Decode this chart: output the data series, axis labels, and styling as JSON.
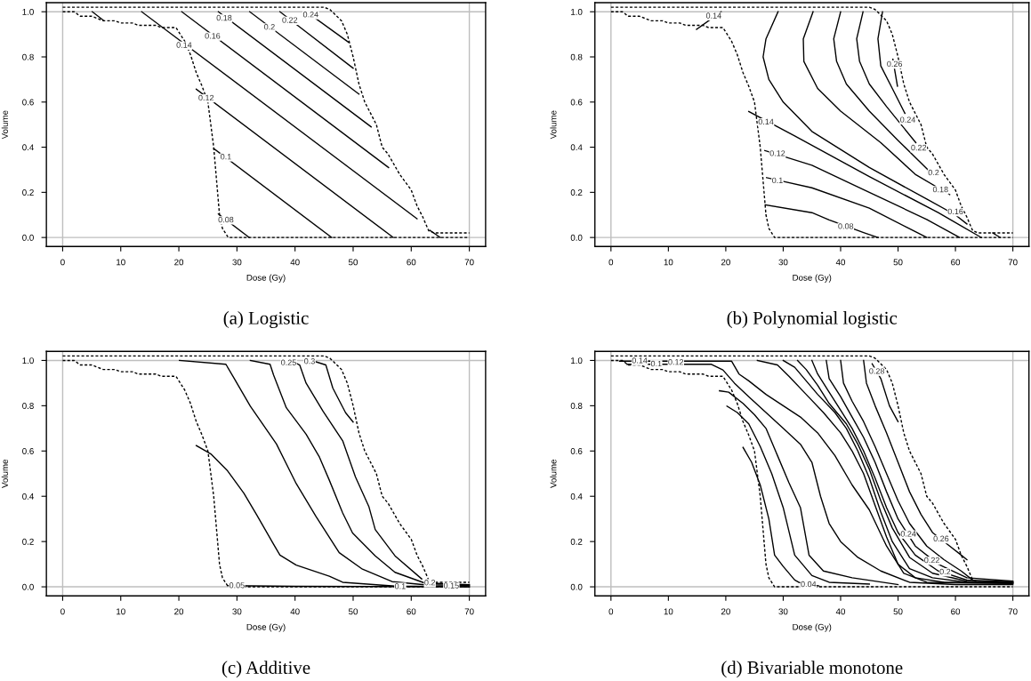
{
  "chart_data": [
    {
      "type": "line",
      "title": "(a) Logistic",
      "xlabel": "Dose (Gy)",
      "ylabel": "Volume",
      "xlim": [
        -2.8,
        72.8
      ],
      "ylim": [
        -0.04,
        1.04
      ],
      "xticks": [
        0,
        10,
        20,
        30,
        40,
        50,
        60,
        70
      ],
      "yticks": [
        {
          "value": 0,
          "label": "0.0"
        },
        {
          "value": 0.2,
          "label": "0.2"
        },
        {
          "value": 0.4,
          "label": "0.4"
        },
        {
          "value": 0.6,
          "label": "0.6"
        },
        {
          "value": 0.8,
          "label": "0.8"
        },
        {
          "value": 1,
          "label": "1.0"
        }
      ],
      "grid": false,
      "ref_lines": [
        {
          "axis": "x",
          "value": 0,
          "color": "#bebebe"
        },
        {
          "axis": "x",
          "value": 70,
          "color": "#bebebe"
        },
        {
          "axis": "y",
          "value": 0,
          "color": "#bebebe"
        },
        {
          "axis": "y",
          "value": 1,
          "color": "#bebebe"
        }
      ],
      "series": [
        {
          "color": "#000000",
          "line_style": "dashed",
          "x": [
            0,
            2,
            3,
            5,
            7,
            9,
            10,
            12,
            13,
            16,
            17,
            19.5,
            21,
            22,
            23,
            24,
            25,
            25.5,
            26,
            26.5,
            27,
            27.5,
            28.5,
            70
          ],
          "values": [
            1.0,
            1.0,
            0.98,
            0.98,
            0.96,
            0.96,
            0.95,
            0.95,
            0.94,
            0.94,
            0.93,
            0.93,
            0.87,
            0.81,
            0.73,
            0.67,
            0.6,
            0.5,
            0.4,
            0.25,
            0.1,
            0.04,
            0.0,
            0.0
          ]
        },
        {
          "color": "#000000",
          "line_style": "dashed",
          "x": [
            0,
            45,
            46,
            48,
            49,
            50,
            51,
            52,
            54,
            55,
            56,
            58,
            60,
            61,
            62,
            63,
            64,
            70
          ],
          "values": [
            1.02,
            1.02,
            1.01,
            0.96,
            0.9,
            0.8,
            0.68,
            0.6,
            0.5,
            0.4,
            0.37,
            0.28,
            0.21,
            0.14,
            0.09,
            0.03,
            0.02,
            0.02
          ]
        },
        {
          "color": "#000000",
          "line_style": "solid",
          "x": [
            26.8,
            32.1
          ],
          "values": [
            0.104,
            0.0
          ]
        },
        {
          "color": "#000000",
          "line_style": "solid",
          "x": [
            26.0,
            46.3
          ],
          "values": [
            0.394,
            0.0
          ]
        },
        {
          "color": "#000000",
          "line_style": "solid",
          "x": [
            23.0,
            56.9
          ],
          "values": [
            0.657,
            0.0
          ]
        },
        {
          "color": "#000000",
          "line_style": "solid",
          "x": [
            13.6,
            61.0
          ],
          "values": [
            1.0,
            0.083
          ]
        },
        {
          "color": "#000000",
          "line_style": "solid",
          "x": [
            20.5,
            56.1
          ],
          "values": [
            1.0,
            0.31
          ]
        },
        {
          "color": "#000000",
          "line_style": "solid",
          "x": [
            26.8,
            53.1
          ],
          "values": [
            1.0,
            0.49
          ]
        },
        {
          "color": "#000000",
          "line_style": "solid",
          "x": [
            32.2,
            51.0
          ],
          "values": [
            1.0,
            0.635
          ]
        },
        {
          "color": "#000000",
          "line_style": "solid",
          "x": [
            37.4,
            50.0
          ],
          "values": [
            1.0,
            0.75
          ]
        },
        {
          "color": "#000000",
          "line_style": "solid",
          "x": [
            42.5,
            49.2
          ],
          "values": [
            0.99,
            0.865
          ]
        },
        {
          "color": "#000000",
          "line_style": "solid",
          "x": [
            5.1,
            7.1
          ],
          "values": [
            1.0,
            0.96
          ]
        },
        {
          "color": "#000000",
          "line_style": "solid",
          "x": [
            63.2,
            65.0
          ],
          "values": [
            0.032,
            0.0
          ]
        }
      ],
      "annotations": [
        {
          "text": "0.08",
          "x": 28.1,
          "y": 0.076
        },
        {
          "text": "0.1",
          "x": 28.1,
          "y": 0.355
        },
        {
          "text": "0.12",
          "x": 24.7,
          "y": 0.616
        },
        {
          "text": "0.14",
          "x": 20.9,
          "y": 0.85
        },
        {
          "text": "0.16",
          "x": 25.8,
          "y": 0.89
        },
        {
          "text": "0.18",
          "x": 27.8,
          "y": 0.97
        },
        {
          "text": "0.2",
          "x": 35.6,
          "y": 0.93
        },
        {
          "text": "0.22",
          "x": 39.1,
          "y": 0.96
        },
        {
          "text": "0.24",
          "x": 42.7,
          "y": 0.985
        }
      ]
    },
    {
      "type": "line",
      "title": "(b) Polynomial logistic",
      "xlabel": "Dose (Gy)",
      "ylabel": "Volume",
      "xlim": [
        -2.8,
        72.8
      ],
      "ylim": [
        -0.04,
        1.04
      ],
      "xticks": [
        0,
        10,
        20,
        30,
        40,
        50,
        60,
        70
      ],
      "yticks": [
        {
          "value": 0,
          "label": "0.0"
        },
        {
          "value": 0.2,
          "label": "0.2"
        },
        {
          "value": 0.4,
          "label": "0.4"
        },
        {
          "value": 0.6,
          "label": "0.6"
        },
        {
          "value": 0.8,
          "label": "0.8"
        },
        {
          "value": 1,
          "label": "1.0"
        }
      ],
      "grid": false,
      "ref_lines": [
        {
          "axis": "x",
          "value": 0,
          "color": "#bebebe"
        },
        {
          "axis": "x",
          "value": 70,
          "color": "#bebebe"
        },
        {
          "axis": "y",
          "value": 0,
          "color": "#bebebe"
        },
        {
          "axis": "y",
          "value": 1,
          "color": "#bebebe"
        }
      ],
      "series": [
        {
          "color": "#000000",
          "line_style": "dashed",
          "x": [
            0,
            2,
            3,
            5,
            7,
            9,
            10,
            12,
            13,
            16,
            17,
            19.5,
            21,
            22,
            23,
            24,
            25,
            25.5,
            26,
            26.5,
            27,
            27.5,
            28.5,
            70
          ],
          "values": [
            1.0,
            1.0,
            0.98,
            0.98,
            0.96,
            0.96,
            0.95,
            0.95,
            0.94,
            0.94,
            0.93,
            0.93,
            0.87,
            0.81,
            0.73,
            0.67,
            0.6,
            0.5,
            0.4,
            0.25,
            0.1,
            0.04,
            0.0,
            0.0
          ]
        },
        {
          "color": "#000000",
          "line_style": "dashed",
          "x": [
            0,
            45,
            46,
            48,
            49,
            50,
            51,
            52,
            54,
            55,
            56,
            58,
            60,
            61,
            62,
            63,
            64,
            70
          ],
          "values": [
            1.02,
            1.02,
            1.01,
            0.96,
            0.9,
            0.8,
            0.68,
            0.6,
            0.5,
            0.4,
            0.37,
            0.28,
            0.21,
            0.14,
            0.09,
            0.03,
            0.02,
            0.02
          ]
        },
        {
          "color": "#000000",
          "line_style": "solid",
          "x": [
            26.9,
            35,
            38,
            44,
            46.5
          ],
          "values": [
            0.145,
            0.11,
            0.078,
            0.022,
            0.0
          ]
        },
        {
          "color": "#000000",
          "line_style": "solid",
          "x": [
            27.1,
            35,
            45,
            55
          ],
          "values": [
            0.265,
            0.22,
            0.13,
            0.0
          ]
        },
        {
          "color": "#000000",
          "line_style": "solid",
          "x": [
            26.8,
            35,
            45,
            55,
            60.7
          ],
          "values": [
            0.385,
            0.32,
            0.2,
            0.08,
            0.0
          ]
        },
        {
          "color": "#000000",
          "line_style": "solid",
          "x": [
            24.0,
            32,
            45,
            57,
            64.5
          ],
          "values": [
            0.558,
            0.45,
            0.27,
            0.11,
            0.0
          ]
        },
        {
          "color": "#000000",
          "line_style": "solid",
          "x": [
            29.1,
            27.0,
            26.5,
            27.5,
            30,
            35,
            45,
            55,
            60,
            62
          ],
          "values": [
            1.0,
            0.88,
            0.8,
            0.7,
            0.6,
            0.47,
            0.31,
            0.17,
            0.1,
            0.06
          ]
        },
        {
          "color": "#000000",
          "line_style": "solid",
          "x": [
            35.2,
            33.5,
            33.6,
            36,
            40,
            47,
            53,
            59
          ],
          "values": [
            1.0,
            0.88,
            0.78,
            0.66,
            0.56,
            0.42,
            0.28,
            0.19
          ]
        },
        {
          "color": "#000000",
          "line_style": "solid",
          "x": [
            40.0,
            38.8,
            39.3,
            41,
            45,
            50,
            56
          ],
          "values": [
            1.0,
            0.88,
            0.78,
            0.68,
            0.56,
            0.43,
            0.28
          ]
        },
        {
          "color": "#000000",
          "line_style": "solid",
          "x": [
            43.9,
            42.8,
            43.3,
            45,
            48,
            53.1
          ],
          "values": [
            1.0,
            0.88,
            0.78,
            0.68,
            0.58,
            0.42
          ]
        },
        {
          "color": "#000000",
          "line_style": "solid",
          "x": [
            47.3,
            46.5,
            47,
            49,
            51.2
          ],
          "values": [
            1.0,
            0.88,
            0.76,
            0.66,
            0.55
          ]
        },
        {
          "color": "#000000",
          "line_style": "solid",
          "x": [
            49.1,
            49.9
          ],
          "values": [
            0.79,
            0.67
          ]
        },
        {
          "color": "#000000",
          "line_style": "solid",
          "x": [
            14.9,
            19.2
          ],
          "values": [
            0.922,
            1.0
          ]
        },
        {
          "color": "#000000",
          "line_style": "solid",
          "x": [
            66.5,
            67.8
          ],
          "values": [
            0.02,
            0.0
          ]
        }
      ],
      "annotations": [
        {
          "text": "0.14",
          "x": 17.9,
          "y": 0.98
        },
        {
          "text": "0.14",
          "x": 27.0,
          "y": 0.51
        },
        {
          "text": "0.12",
          "x": 29.0,
          "y": 0.37
        },
        {
          "text": "0.1",
          "x": 29.0,
          "y": 0.25
        },
        {
          "text": "0.08",
          "x": 40.9,
          "y": 0.047
        },
        {
          "text": "0.16",
          "x": 60.0,
          "y": 0.112
        },
        {
          "text": "0.18",
          "x": 57.4,
          "y": 0.21
        },
        {
          "text": "0.2",
          "x": 56.2,
          "y": 0.285
        },
        {
          "text": "0.22",
          "x": 53.6,
          "y": 0.395
        },
        {
          "text": "0.24",
          "x": 51.7,
          "y": 0.519
        },
        {
          "text": "0.26",
          "x": 49.4,
          "y": 0.766
        }
      ]
    },
    {
      "type": "line",
      "title": "(c) Additive",
      "xlabel": "Dose (Gy)",
      "ylabel": "Volume",
      "xlim": [
        -2.8,
        72.8
      ],
      "ylim": [
        -0.04,
        1.04
      ],
      "xticks": [
        0,
        10,
        20,
        30,
        40,
        50,
        60,
        70
      ],
      "yticks": [
        {
          "value": 0,
          "label": "0.0"
        },
        {
          "value": 0.2,
          "label": "0.2"
        },
        {
          "value": 0.4,
          "label": "0.4"
        },
        {
          "value": 0.6,
          "label": "0.6"
        },
        {
          "value": 0.8,
          "label": "0.8"
        },
        {
          "value": 1,
          "label": "1.0"
        }
      ],
      "grid": false,
      "ref_lines": [
        {
          "axis": "x",
          "value": 0,
          "color": "#bebebe"
        },
        {
          "axis": "x",
          "value": 70,
          "color": "#bebebe"
        },
        {
          "axis": "y",
          "value": 0,
          "color": "#bebebe"
        },
        {
          "axis": "y",
          "value": 1,
          "color": "#bebebe"
        }
      ],
      "series": [
        {
          "color": "#000000",
          "line_style": "dashed",
          "x": [
            0,
            2,
            3,
            5,
            7,
            9,
            10,
            12,
            13,
            16,
            17,
            19.5,
            21,
            22,
            23,
            24,
            25,
            25.5,
            26,
            26.5,
            27,
            27.5,
            28.5,
            70
          ],
          "values": [
            1.0,
            1.0,
            0.98,
            0.98,
            0.96,
            0.96,
            0.95,
            0.95,
            0.94,
            0.94,
            0.93,
            0.93,
            0.87,
            0.81,
            0.73,
            0.67,
            0.6,
            0.5,
            0.4,
            0.25,
            0.1,
            0.04,
            0.0,
            0.0
          ]
        },
        {
          "color": "#000000",
          "line_style": "dashed",
          "x": [
            0,
            45,
            46,
            48,
            49,
            50,
            51,
            52,
            54,
            55,
            56,
            58,
            60,
            61,
            62,
            63,
            64,
            70
          ],
          "values": [
            1.02,
            1.02,
            1.01,
            0.96,
            0.9,
            0.8,
            0.68,
            0.6,
            0.5,
            0.4,
            0.37,
            0.28,
            0.21,
            0.14,
            0.09,
            0.03,
            0.02,
            0.02
          ]
        },
        {
          "color": "#000000",
          "line_style": "solid",
          "x": [
            28.5,
            40,
            70
          ],
          "values": [
            0.005,
            0.002,
            0.0
          ]
        },
        {
          "color": "#000000",
          "line_style": "solid",
          "x": [
            23.0,
            25.5,
            28.3,
            31.2,
            33.4,
            36.3,
            37.4,
            40.2,
            45.9,
            48.2,
            57.2,
            70
          ],
          "values": [
            0.624,
            0.587,
            0.515,
            0.413,
            0.318,
            0.188,
            0.14,
            0.096,
            0.047,
            0.02,
            0.003,
            0.0
          ]
        },
        {
          "color": "#000000",
          "line_style": "solid",
          "x": [
            20.1,
            28.1,
            29.5,
            32.3,
            36.8,
            40.2,
            43.6,
            47.6,
            51.6,
            56.7,
            62.3,
            70
          ],
          "values": [
            1.0,
            0.983,
            0.922,
            0.798,
            0.631,
            0.456,
            0.311,
            0.151,
            0.078,
            0.023,
            0.009,
            0.006
          ]
        },
        {
          "color": "#000000",
          "line_style": "solid",
          "x": [
            32.3,
            35.7,
            36.3,
            38.5,
            41.9,
            44.2,
            45.9,
            48.2,
            49.9,
            53.8,
            57.2,
            62.3,
            70
          ],
          "values": [
            1.0,
            0.983,
            0.936,
            0.791,
            0.674,
            0.573,
            0.471,
            0.326,
            0.238,
            0.137,
            0.064,
            0.017,
            0.009
          ]
        },
        {
          "color": "#000000",
          "line_style": "solid",
          "x": [
            40.2,
            40.8,
            41.9,
            44.8,
            48.2,
            50.4,
            52.7,
            53.8,
            57.2,
            61.8
          ],
          "values": [
            0.988,
            0.98,
            0.9,
            0.776,
            0.645,
            0.485,
            0.355,
            0.253,
            0.137,
            0.035
          ]
        },
        {
          "color": "#000000",
          "line_style": "solid",
          "x": [
            43.6,
            45.3,
            46.5,
            48.7,
            50.0
          ],
          "values": [
            0.994,
            0.98,
            0.878,
            0.769,
            0.728
          ]
        }
      ],
      "annotations": [
        {
          "text": "0.05",
          "x": 30.0,
          "y": 0.004
        },
        {
          "text": "0.1",
          "x": 58.1,
          "y": 0.0
        },
        {
          "text": "0.15",
          "x": 66.9,
          "y": 0.003
        },
        {
          "text": "0.2",
          "x": 63.2,
          "y": 0.016
        },
        {
          "text": "0.25",
          "x": 38.9,
          "y": 0.988
        },
        {
          "text": "0.3",
          "x": 42.5,
          "y": 0.994
        }
      ]
    },
    {
      "type": "line",
      "title": "(d) Bivariable monotone",
      "xlabel": "Dose (Gy)",
      "ylabel": "Volume",
      "xlim": [
        -2.8,
        72.8
      ],
      "ylim": [
        -0.04,
        1.04
      ],
      "xticks": [
        0,
        10,
        20,
        30,
        40,
        50,
        60,
        70
      ],
      "yticks": [
        {
          "value": 0,
          "label": "0.0"
        },
        {
          "value": 0.2,
          "label": "0.2"
        },
        {
          "value": 0.4,
          "label": "0.4"
        },
        {
          "value": 0.6,
          "label": "0.6"
        },
        {
          "value": 0.8,
          "label": "0.8"
        },
        {
          "value": 1,
          "label": "1.0"
        }
      ],
      "grid": false,
      "ref_lines": [
        {
          "axis": "x",
          "value": 0,
          "color": "#bebebe"
        },
        {
          "axis": "x",
          "value": 70,
          "color": "#bebebe"
        },
        {
          "axis": "y",
          "value": 0,
          "color": "#bebebe"
        },
        {
          "axis": "y",
          "value": 1,
          "color": "#bebebe"
        }
      ],
      "series": [
        {
          "color": "#000000",
          "line_style": "dashed",
          "x": [
            0,
            2,
            3,
            5,
            7,
            9,
            10,
            12,
            13,
            16,
            17,
            19.5,
            21,
            22,
            23,
            24,
            25,
            25.5,
            26,
            26.5,
            27,
            27.5,
            28.5,
            70
          ],
          "values": [
            1.0,
            1.0,
            0.98,
            0.98,
            0.96,
            0.96,
            0.95,
            0.95,
            0.94,
            0.94,
            0.93,
            0.93,
            0.87,
            0.81,
            0.73,
            0.67,
            0.6,
            0.5,
            0.4,
            0.25,
            0.1,
            0.04,
            0.0,
            0.0
          ]
        },
        {
          "color": "#000000",
          "line_style": "dashed",
          "x": [
            0,
            45,
            46,
            48,
            49,
            50,
            51,
            52,
            54,
            55,
            56,
            58,
            60,
            61,
            62,
            63,
            64,
            70
          ],
          "values": [
            1.02,
            1.02,
            1.01,
            0.96,
            0.9,
            0.8,
            0.68,
            0.6,
            0.5,
            0.4,
            0.37,
            0.28,
            0.21,
            0.14,
            0.09,
            0.03,
            0.02,
            0.02
          ]
        },
        {
          "color": "#000000",
          "line_style": "solid",
          "x": [
            23.0,
            24.5,
            26,
            27.5,
            28.5,
            30,
            32,
            32.7,
            36.2
          ],
          "values": [
            0.616,
            0.55,
            0.45,
            0.3,
            0.14,
            0.09,
            0.03,
            0.02,
            0.004
          ]
        },
        {
          "color": "#000000",
          "line_style": "solid",
          "x": [
            20.2,
            22,
            24,
            26,
            28,
            30,
            32,
            35,
            38,
            45
          ],
          "values": [
            0.798,
            0.77,
            0.72,
            0.62,
            0.5,
            0.35,
            0.14,
            0.05,
            0.02,
            0.012
          ]
        },
        {
          "color": "#000000",
          "line_style": "solid",
          "x": [
            18.9,
            20.5,
            23,
            25,
            27,
            29,
            31,
            33,
            34.5,
            37,
            42,
            50
          ],
          "values": [
            0.866,
            0.86,
            0.81,
            0.76,
            0.7,
            0.58,
            0.46,
            0.35,
            0.14,
            0.07,
            0.04,
            0.01
          ]
        },
        {
          "color": "#000000",
          "line_style": "solid",
          "x": [
            2.8,
            17.5,
            19.5,
            21.5,
            24,
            27,
            30,
            33,
            35,
            36.5,
            38,
            40,
            43,
            47,
            52,
            60,
            70
          ],
          "values": [
            0.983,
            0.983,
            0.958,
            0.9,
            0.84,
            0.77,
            0.7,
            0.63,
            0.55,
            0.4,
            0.28,
            0.2,
            0.13,
            0.07,
            0.02,
            0.01,
            0.01
          ]
        },
        {
          "color": "#000000",
          "line_style": "solid",
          "x": [
            1.5,
            21,
            22.3,
            24,
            27,
            30,
            33,
            36,
            39,
            42,
            45,
            48,
            51,
            55,
            70
          ],
          "values": [
            0.997,
            0.997,
            0.94,
            0.91,
            0.85,
            0.8,
            0.75,
            0.68,
            0.58,
            0.45,
            0.34,
            0.18,
            0.06,
            0.02,
            0.015
          ]
        },
        {
          "color": "#000000",
          "line_style": "solid",
          "x": [
            25.5,
            29,
            31,
            34,
            37,
            40,
            42,
            44,
            46,
            48,
            50,
            53,
            58,
            70
          ],
          "values": [
            1.0,
            0.98,
            0.93,
            0.85,
            0.77,
            0.68,
            0.6,
            0.5,
            0.36,
            0.22,
            0.1,
            0.04,
            0.02,
            0.016
          ]
        },
        {
          "color": "#000000",
          "line_style": "solid",
          "x": [
            30,
            32,
            34,
            36,
            39,
            41,
            43,
            45,
            47,
            49,
            52,
            56,
            62,
            70
          ],
          "values": [
            1.0,
            0.97,
            0.91,
            0.85,
            0.77,
            0.7,
            0.6,
            0.48,
            0.33,
            0.2,
            0.08,
            0.04,
            0.02,
            0.018
          ]
        },
        {
          "color": "#000000",
          "line_style": "solid",
          "x": [
            32.5,
            34,
            36,
            38,
            41,
            43,
            45,
            47,
            49,
            52,
            56,
            62,
            70
          ],
          "values": [
            1.0,
            0.96,
            0.89,
            0.81,
            0.72,
            0.63,
            0.52,
            0.38,
            0.26,
            0.13,
            0.06,
            0.025,
            0.02
          ]
        },
        {
          "color": "#000000",
          "line_style": "solid",
          "x": [
            35,
            36,
            38,
            40,
            42,
            44,
            46,
            48,
            50,
            53,
            57,
            62,
            70
          ],
          "values": [
            1.0,
            0.94,
            0.86,
            0.78,
            0.7,
            0.6,
            0.48,
            0.35,
            0.24,
            0.14,
            0.07,
            0.03,
            0.022
          ]
        },
        {
          "color": "#000000",
          "line_style": "solid",
          "x": [
            37.5,
            38,
            40,
            42,
            44,
            46,
            48,
            50,
            53,
            57,
            62,
            70
          ],
          "values": [
            1.0,
            0.92,
            0.84,
            0.75,
            0.66,
            0.55,
            0.42,
            0.3,
            0.18,
            0.1,
            0.04,
            0.025
          ]
        },
        {
          "color": "#000000",
          "line_style": "solid",
          "x": [
            40,
            40.5,
            42,
            44,
            46,
            48,
            50,
            52,
            55,
            58,
            61,
            63
          ],
          "values": [
            1.0,
            0.9,
            0.82,
            0.73,
            0.62,
            0.5,
            0.38,
            0.28,
            0.18,
            0.12,
            0.07,
            0.03
          ]
        },
        {
          "color": "#000000",
          "line_style": "solid",
          "x": [
            44,
            44.5,
            46,
            48,
            50,
            52,
            54,
            56,
            59,
            61,
            62
          ],
          "values": [
            1.0,
            0.9,
            0.8,
            0.68,
            0.55,
            0.42,
            0.32,
            0.24,
            0.18,
            0.14,
            0.12
          ]
        },
        {
          "color": "#000000",
          "line_style": "solid",
          "x": [
            45.5,
            47,
            48.5,
            50
          ],
          "values": [
            0.985,
            0.92,
            0.8,
            0.73
          ]
        }
      ],
      "annotations": [
        {
          "text": "0.14",
          "x": 5.0,
          "y": 0.997
        },
        {
          "text": "0.1",
          "x": 7.9,
          "y": 0.983
        },
        {
          "text": "0.12",
          "x": 11.3,
          "y": 0.99
        },
        {
          "text": "0.04",
          "x": 34.4,
          "y": 0.009
        },
        {
          "text": "0.24",
          "x": 51.8,
          "y": 0.231
        },
        {
          "text": "0.22",
          "x": 55.9,
          "y": 0.115
        },
        {
          "text": "0.2",
          "x": 58.2,
          "y": 0.064
        },
        {
          "text": "0.26",
          "x": 57.5,
          "y": 0.21
        },
        {
          "text": "0.28",
          "x": 46.3,
          "y": 0.95
        }
      ]
    }
  ]
}
